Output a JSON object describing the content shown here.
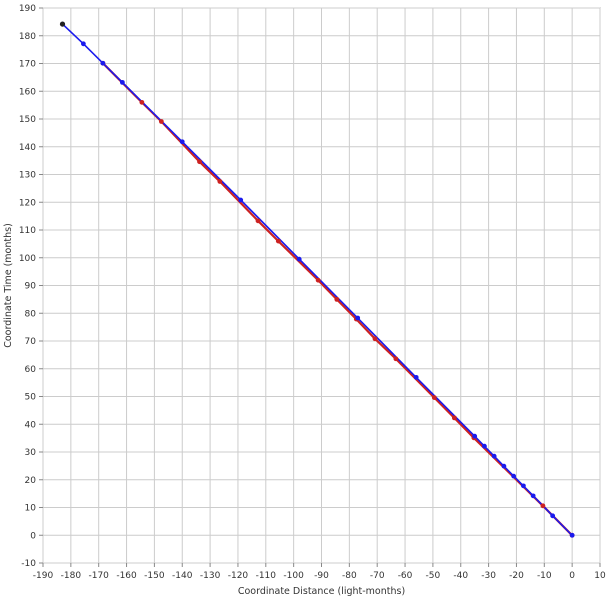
{
  "chart_data": {
    "type": "line",
    "title": "",
    "xlabel": "Coordinate Distance (light-months)",
    "ylabel": "Coordinate Time (months)",
    "xlim": [
      -190,
      10
    ],
    "ylim": [
      -10,
      190
    ],
    "x_ticks": [
      -190,
      -180,
      -170,
      -160,
      -150,
      -140,
      -130,
      -120,
      -110,
      -100,
      -90,
      -80,
      -70,
      -60,
      -50,
      -40,
      -30,
      -20,
      -10,
      0,
      10
    ],
    "y_ticks": [
      -10,
      0,
      10,
      20,
      30,
      40,
      50,
      60,
      70,
      80,
      90,
      100,
      110,
      120,
      130,
      140,
      150,
      160,
      170,
      180,
      190
    ],
    "grid": true,
    "legend": "none",
    "colors": {
      "line_red": "#cc2222",
      "line_blue": "#1a1aee",
      "point_red": "#cc2222",
      "point_blue": "#1a1aee",
      "point_black": "#222222",
      "grid": "#cccccc",
      "axis": "#888888"
    },
    "series": [
      {
        "color_key": "red",
        "x": [
          0,
          -10.5,
          -35.3,
          -42.3,
          -49.5,
          -63.3,
          -70.8,
          -77.5,
          -84.5,
          -91.2,
          -105.5,
          -112.8,
          -126.5,
          -133.8,
          -147.5,
          -154.5,
          -168.5
        ],
        "y": [
          0,
          10.6,
          35.1,
          42.3,
          49.6,
          63.6,
          70.8,
          77.9,
          85.0,
          91.9,
          106.0,
          113.3,
          127.5,
          134.6,
          149.1,
          156.0,
          170.1
        ]
      },
      {
        "color_key": "blue",
        "x": [
          0,
          -7.0,
          -14.0,
          -17.5,
          -21.0,
          -24.5,
          -28.0,
          -31.5,
          -35.0,
          -56.0,
          -77.0,
          -98.0,
          -119.0,
          -140.0,
          -161.5,
          -168.5,
          -175.5,
          -183.0
        ],
        "y": [
          0,
          7.0,
          14.2,
          17.8,
          21.3,
          24.9,
          28.5,
          32.1,
          35.7,
          56.9,
          78.3,
          99.5,
          120.8,
          141.8,
          163.2,
          170.1,
          177.1,
          184.2
        ]
      }
    ],
    "endpoint_marker": {
      "x": -183.0,
      "y": 184.2,
      "color_key": "black"
    }
  }
}
